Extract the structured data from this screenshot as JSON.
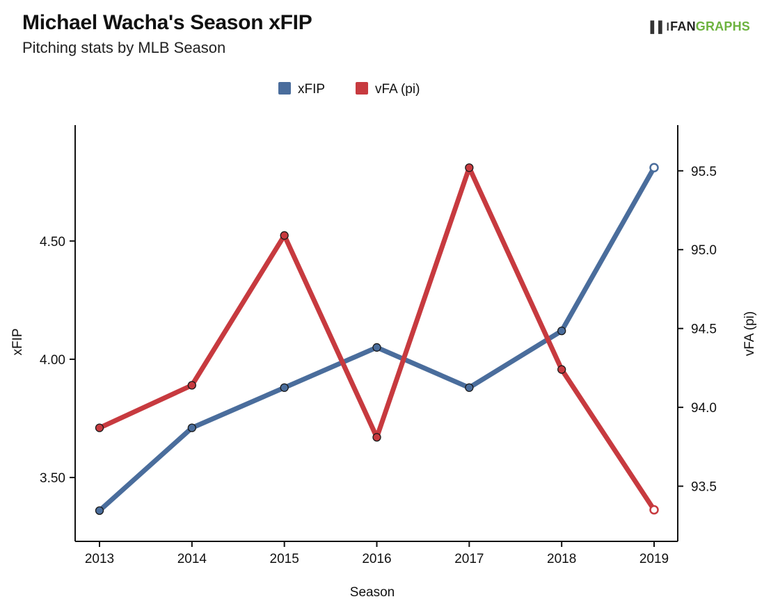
{
  "header": {
    "title": "Michael Wacha's Season xFIP",
    "subtitle": "Pitching stats by MLB Season"
  },
  "logo": {
    "mark": "▌▌l",
    "fan": "FAN",
    "graphs": "GRAPHS"
  },
  "colors": {
    "xfip": "#4a6d9c",
    "vfa": "#c73a3f",
    "axis": "#111111",
    "logo_green": "#6db33f"
  },
  "chart_data": {
    "type": "line",
    "title": "Michael Wacha's Season xFIP",
    "subtitle": "Pitching stats by MLB Season",
    "xlabel": "Season",
    "categories": [
      "2013",
      "2014",
      "2015",
      "2016",
      "2017",
      "2018",
      "2019"
    ],
    "y_left": {
      "label": "xFIP",
      "range": [
        3.23,
        4.99
      ],
      "ticks": [
        3.5,
        4.0,
        4.5
      ],
      "tick_labels": [
        "3.50",
        "4.00",
        "4.50"
      ]
    },
    "y_right": {
      "label": "vFA (pi)",
      "range": [
        93.15,
        95.79
      ],
      "ticks": [
        93.5,
        94.0,
        94.5,
        95.0,
        95.5
      ],
      "tick_labels": [
        "93.5",
        "94.0",
        "94.5",
        "95.0",
        "95.5"
      ]
    },
    "series": [
      {
        "name": "xFIP",
        "axis": "left",
        "values": [
          3.36,
          3.71,
          3.88,
          4.05,
          3.88,
          4.12,
          4.81
        ]
      },
      {
        "name": "vFA (pi)",
        "axis": "right",
        "values": [
          93.87,
          94.14,
          95.09,
          93.81,
          95.52,
          94.24,
          93.35
        ]
      }
    ],
    "last_point_open": true,
    "grid": false,
    "legend_position": "top-center"
  }
}
